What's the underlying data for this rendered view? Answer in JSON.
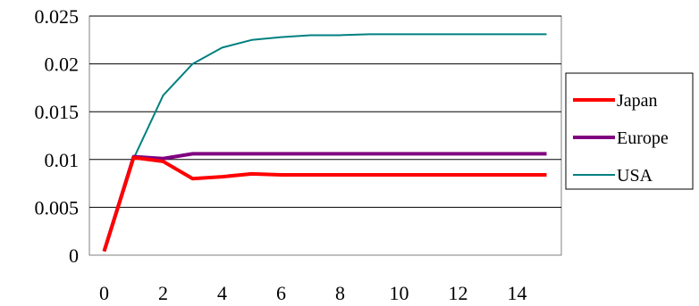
{
  "chart_data": {
    "type": "line",
    "title": "",
    "xlabel": "",
    "ylabel": "",
    "xlim": [
      -0.5,
      15.5
    ],
    "ylim": [
      0,
      0.025
    ],
    "x_ticks": [
      0,
      2,
      4,
      6,
      8,
      10,
      12,
      14
    ],
    "x_tick_labels": [
      "0",
      "2",
      "4",
      "6",
      "8",
      "10",
      "12",
      "14"
    ],
    "y_ticks": [
      0,
      0.005,
      0.01,
      0.015,
      0.02,
      0.025
    ],
    "y_tick_labels": [
      "0",
      "0.005",
      "0.01",
      "0.015",
      "0.02",
      "0.025"
    ],
    "grid": "horizontal",
    "legend_position": "right",
    "x": [
      0,
      1,
      2,
      3,
      4,
      5,
      6,
      7,
      8,
      9,
      10,
      11,
      12,
      13,
      14,
      15
    ],
    "series": [
      {
        "name": "Japan",
        "color": "#ff0000",
        "values": [
          0.0004,
          0.0102,
          0.0098,
          0.008,
          0.0082,
          0.0085,
          0.0084,
          0.0084,
          0.0084,
          0.0084,
          0.0084,
          0.0084,
          0.0084,
          0.0084,
          0.0084,
          0.0084
        ]
      },
      {
        "name": "Europe",
        "color": "#800080",
        "values": [
          0.0004,
          0.0103,
          0.0101,
          0.0106,
          0.0106,
          0.0106,
          0.0106,
          0.0106,
          0.0106,
          0.0106,
          0.0106,
          0.0106,
          0.0106,
          0.0106,
          0.0106,
          0.0106
        ]
      },
      {
        "name": "USA",
        "color": "#008080",
        "values": [
          0.0004,
          0.0101,
          0.0167,
          0.02,
          0.0217,
          0.0225,
          0.0228,
          0.023,
          0.023,
          0.0231,
          0.0231,
          0.0231,
          0.0231,
          0.0231,
          0.0231,
          0.0231
        ]
      }
    ]
  }
}
